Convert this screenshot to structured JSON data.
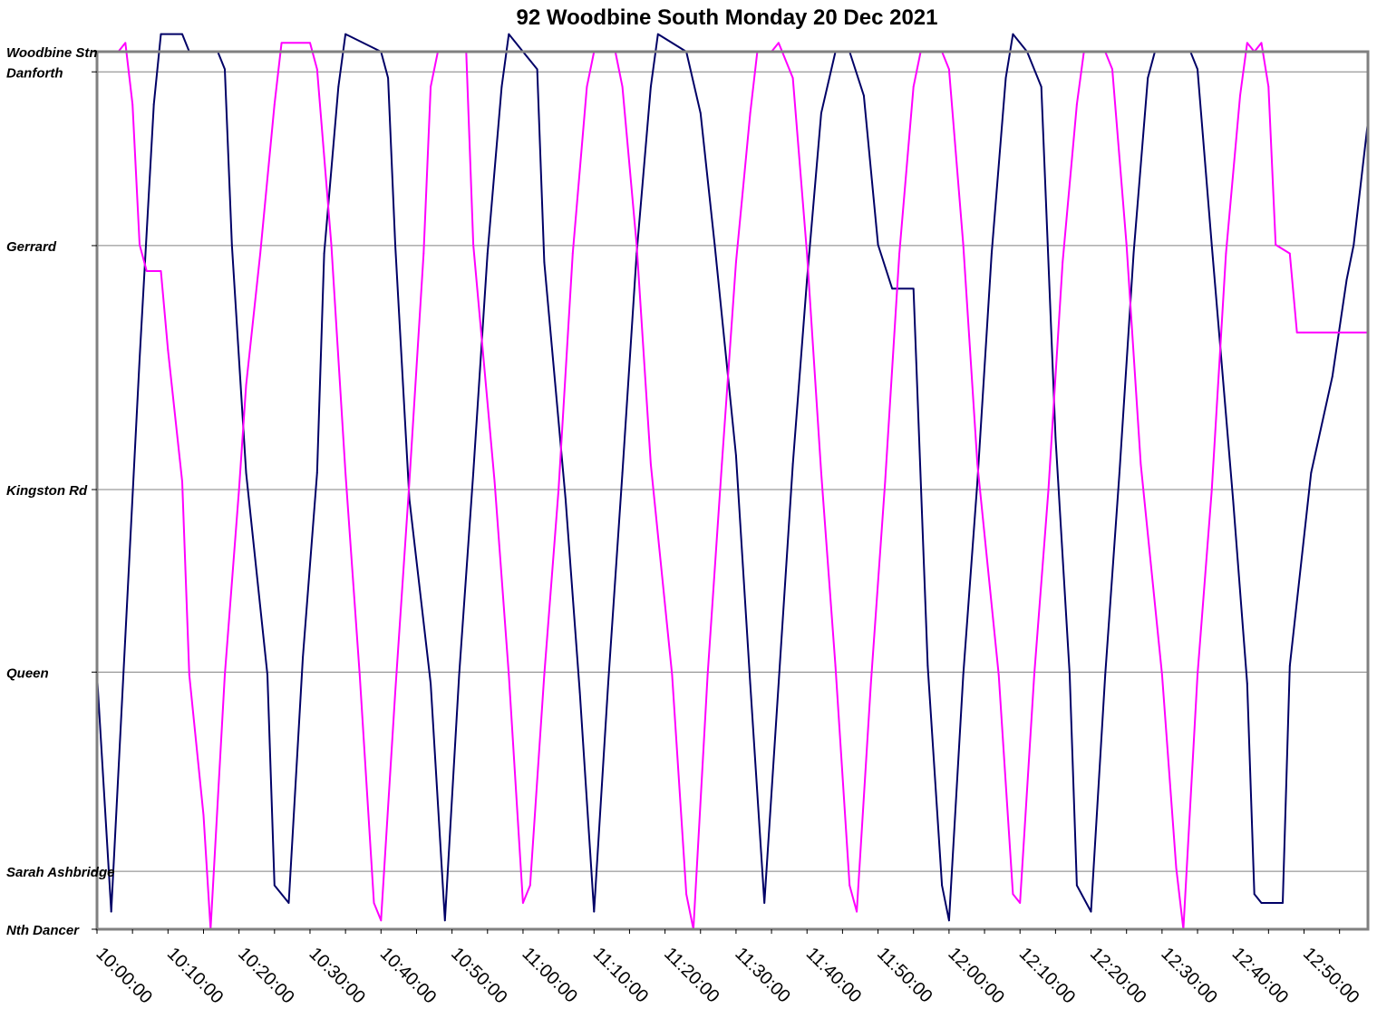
{
  "chart_data": {
    "type": "line",
    "title": "92 Woodbine South Monday 20 Dec 2021",
    "xlabel": "",
    "ylabel": "",
    "xlim": [
      "10:00:00",
      "12:59:00"
    ],
    "x_ticks": [
      "10:00:00",
      "10:10:00",
      "10:20:00",
      "10:30:00",
      "10:40:00",
      "10:50:00",
      "11:00:00",
      "11:10:00",
      "11:20:00",
      "11:30:00",
      "11:40:00",
      "11:50:00",
      "12:00:00",
      "12:10:00",
      "12:20:00",
      "12:30:00",
      "12:40:00",
      "12:50:00"
    ],
    "y_axis": {
      "scale": "stop distance (Nth Dancer = 0, Woodbine Stn = 1)",
      "stops": [
        {
          "name": "Woodbine Stn",
          "pos": 1.0
        },
        {
          "name": "Danforth",
          "pos": 0.977
        },
        {
          "name": "Gerrard",
          "pos": 0.779
        },
        {
          "name": "Kingston Rd",
          "pos": 0.501
        },
        {
          "name": "Queen",
          "pos": 0.293
        },
        {
          "name": "Sarah Ashbridge",
          "pos": 0.066
        },
        {
          "name": "Nth Dancer",
          "pos": 0.0
        }
      ]
    },
    "grid": true,
    "legend": "none",
    "colors": {
      "series_1": "#000066",
      "series_2": "#FF00FF",
      "grid": "#808080",
      "frame": "#808080"
    },
    "series": [
      {
        "color": "#000066",
        "points": [
          [
            "10:00:00",
            0.29
          ],
          [
            "10:02:00",
            0.02
          ],
          [
            "10:06:00",
            0.65
          ],
          [
            "10:08:00",
            0.94
          ],
          [
            "10:09:00",
            1.02
          ],
          [
            "10:12:00",
            1.02
          ],
          [
            "10:13:00",
            1.0
          ],
          [
            "10:17:00",
            1.0
          ],
          [
            "10:18:00",
            0.98
          ],
          [
            "10:19:00",
            0.78
          ],
          [
            "10:21:00",
            0.52
          ],
          [
            "10:24:00",
            0.29
          ],
          [
            "10:25:00",
            0.05
          ],
          [
            "10:27:00",
            0.03
          ],
          [
            "10:29:00",
            0.31
          ],
          [
            "10:31:00",
            0.52
          ],
          [
            "10:32:00",
            0.77
          ],
          [
            "10:34:00",
            0.96
          ],
          [
            "10:35:00",
            1.02
          ],
          [
            "10:40:00",
            1.0
          ],
          [
            "10:41:00",
            0.97
          ],
          [
            "10:42:00",
            0.78
          ],
          [
            "10:44:00",
            0.49
          ],
          [
            "10:47:00",
            0.28
          ],
          [
            "10:49:00",
            0.01
          ],
          [
            "10:51:00",
            0.29
          ],
          [
            "10:53:00",
            0.52
          ],
          [
            "10:55:00",
            0.77
          ],
          [
            "10:57:00",
            0.96
          ],
          [
            "10:58:00",
            1.02
          ],
          [
            "11:00:00",
            1.0
          ],
          [
            "11:02:00",
            0.98
          ],
          [
            "11:03:00",
            0.76
          ],
          [
            "11:06:00",
            0.49
          ],
          [
            "11:08:00",
            0.27
          ],
          [
            "11:10:00",
            0.02
          ],
          [
            "11:12:00",
            0.28
          ],
          [
            "11:14:00",
            0.52
          ],
          [
            "11:16:00",
            0.77
          ],
          [
            "11:18:00",
            0.96
          ],
          [
            "11:19:00",
            1.02
          ],
          [
            "11:23:00",
            1.0
          ],
          [
            "11:25:00",
            0.93
          ],
          [
            "11:27:00",
            0.78
          ],
          [
            "11:30:00",
            0.54
          ],
          [
            "11:32:00",
            0.28
          ],
          [
            "11:34:00",
            0.03
          ],
          [
            "11:36:00",
            0.28
          ],
          [
            "11:38:00",
            0.53
          ],
          [
            "11:40:00",
            0.74
          ],
          [
            "11:42:00",
            0.93
          ],
          [
            "11:44:00",
            1.0
          ],
          [
            "11:46:00",
            1.0
          ],
          [
            "11:48:00",
            0.95
          ],
          [
            "11:50:00",
            0.78
          ],
          [
            "11:52:00",
            0.73
          ],
          [
            "11:55:00",
            0.73
          ],
          [
            "11:57:00",
            0.3
          ],
          [
            "11:59:00",
            0.05
          ],
          [
            "12:00:00",
            0.01
          ],
          [
            "12:02:00",
            0.29
          ],
          [
            "12:04:00",
            0.51
          ],
          [
            "12:06:00",
            0.77
          ],
          [
            "12:08:00",
            0.97
          ],
          [
            "12:09:00",
            1.02
          ],
          [
            "12:11:00",
            1.0
          ],
          [
            "12:13:00",
            0.96
          ],
          [
            "12:15:00",
            0.56
          ],
          [
            "12:17:00",
            0.29
          ],
          [
            "12:18:00",
            0.05
          ],
          [
            "12:20:00",
            0.02
          ],
          [
            "12:22:00",
            0.29
          ],
          [
            "12:24:00",
            0.52
          ],
          [
            "12:26:00",
            0.77
          ],
          [
            "12:28:00",
            0.97
          ],
          [
            "12:29:00",
            1.0
          ],
          [
            "12:34:00",
            1.0
          ],
          [
            "12:35:00",
            0.98
          ],
          [
            "12:37:00",
            0.78
          ],
          [
            "12:40:00",
            0.49
          ],
          [
            "12:42:00",
            0.28
          ],
          [
            "12:43:00",
            0.04
          ],
          [
            "12:44:00",
            0.03
          ],
          [
            "12:47:00",
            0.03
          ],
          [
            "12:48:00",
            0.3
          ],
          [
            "12:51:00",
            0.52
          ],
          [
            "12:54:00",
            0.63
          ],
          [
            "12:56:00",
            0.74
          ],
          [
            "12:57:00",
            0.78
          ],
          [
            "12:59:00",
            0.92
          ]
        ]
      },
      {
        "color": "#FF00FF",
        "points": [
          [
            "10:00:00",
            1.0
          ],
          [
            "10:03:00",
            1.0
          ],
          [
            "10:04:00",
            1.01
          ],
          [
            "10:05:00",
            0.94
          ],
          [
            "10:06:00",
            0.78
          ],
          [
            "10:07:00",
            0.75
          ],
          [
            "10:09:00",
            0.75
          ],
          [
            "10:10:00",
            0.66
          ],
          [
            "10:12:00",
            0.51
          ],
          [
            "10:13:00",
            0.29
          ],
          [
            "10:15:00",
            0.13
          ],
          [
            "10:16:00",
            0.0
          ],
          [
            "10:18:00",
            0.29
          ],
          [
            "10:20:00",
            0.5
          ],
          [
            "10:21:00",
            0.62
          ],
          [
            "10:23:00",
            0.77
          ],
          [
            "10:25:00",
            0.94
          ],
          [
            "10:26:00",
            1.01
          ],
          [
            "10:30:00",
            1.01
          ],
          [
            "10:31:00",
            0.98
          ],
          [
            "10:33:00",
            0.78
          ],
          [
            "10:35:00",
            0.52
          ],
          [
            "10:37:00",
            0.29
          ],
          [
            "10:39:00",
            0.03
          ],
          [
            "10:40:00",
            0.01
          ],
          [
            "10:42:00",
            0.27
          ],
          [
            "10:44:00",
            0.51
          ],
          [
            "10:46:00",
            0.77
          ],
          [
            "10:47:00",
            0.96
          ],
          [
            "10:48:00",
            1.0
          ],
          [
            "10:52:00",
            1.0
          ],
          [
            "10:53:00",
            0.78
          ],
          [
            "10:56:00",
            0.51
          ],
          [
            "10:58:00",
            0.29
          ],
          [
            "11:00:00",
            0.03
          ],
          [
            "11:01:00",
            0.05
          ],
          [
            "11:03:00",
            0.29
          ],
          [
            "11:05:00",
            0.5
          ],
          [
            "11:07:00",
            0.77
          ],
          [
            "11:09:00",
            0.96
          ],
          [
            "11:10:00",
            1.0
          ],
          [
            "11:13:00",
            1.0
          ],
          [
            "11:14:00",
            0.96
          ],
          [
            "11:16:00",
            0.78
          ],
          [
            "11:18:00",
            0.53
          ],
          [
            "11:21:00",
            0.29
          ],
          [
            "11:23:00",
            0.04
          ],
          [
            "11:24:00",
            0.0
          ],
          [
            "11:26:00",
            0.29
          ],
          [
            "11:28:00",
            0.53
          ],
          [
            "11:30:00",
            0.76
          ],
          [
            "11:32:00",
            0.93
          ],
          [
            "11:33:00",
            1.0
          ],
          [
            "11:35:00",
            1.0
          ],
          [
            "11:36:00",
            1.01
          ],
          [
            "11:38:00",
            0.97
          ],
          [
            "11:40:00",
            0.77
          ],
          [
            "11:42:00",
            0.52
          ],
          [
            "11:44:00",
            0.3
          ],
          [
            "11:46:00",
            0.05
          ],
          [
            "11:47:00",
            0.02
          ],
          [
            "11:49:00",
            0.28
          ],
          [
            "11:51:00",
            0.51
          ],
          [
            "11:53:00",
            0.77
          ],
          [
            "11:55:00",
            0.96
          ],
          [
            "11:56:00",
            1.0
          ],
          [
            "11:59:00",
            1.0
          ],
          [
            "12:00:00",
            0.98
          ],
          [
            "12:02:00",
            0.78
          ],
          [
            "12:04:00",
            0.53
          ],
          [
            "12:07:00",
            0.29
          ],
          [
            "12:09:00",
            0.04
          ],
          [
            "12:10:00",
            0.03
          ],
          [
            "12:12:00",
            0.29
          ],
          [
            "12:14:00",
            0.5
          ],
          [
            "12:16:00",
            0.76
          ],
          [
            "12:18:00",
            0.94
          ],
          [
            "12:19:00",
            1.0
          ],
          [
            "12:22:00",
            1.0
          ],
          [
            "12:23:00",
            0.98
          ],
          [
            "12:25:00",
            0.78
          ],
          [
            "12:27:00",
            0.53
          ],
          [
            "12:30:00",
            0.29
          ],
          [
            "12:32:00",
            0.07
          ],
          [
            "12:33:00",
            0.0
          ],
          [
            "12:35:00",
            0.29
          ],
          [
            "12:37:00",
            0.5
          ],
          [
            "12:39:00",
            0.77
          ],
          [
            "12:41:00",
            0.95
          ],
          [
            "12:42:00",
            1.01
          ],
          [
            "12:43:00",
            1.0
          ],
          [
            "12:44:00",
            1.01
          ],
          [
            "12:45:00",
            0.96
          ],
          [
            "12:46:00",
            0.78
          ],
          [
            "12:48:00",
            0.77
          ],
          [
            "12:49:00",
            0.68
          ],
          [
            "12:50:00",
            0.68
          ],
          [
            "12:59:00",
            0.68
          ]
        ]
      }
    ]
  }
}
